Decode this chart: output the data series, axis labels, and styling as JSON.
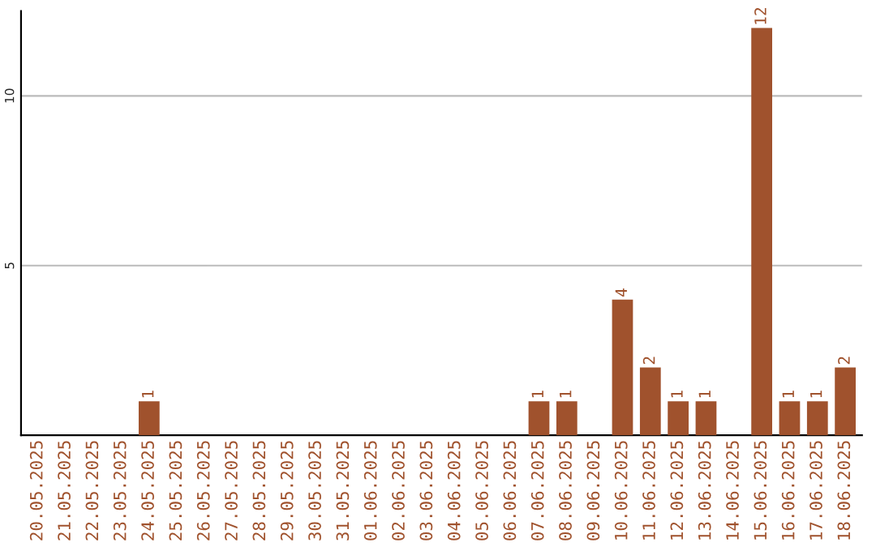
{
  "chart_data": {
    "type": "bar",
    "categories": [
      "20.05.2025",
      "21.05.2025",
      "22.05.2025",
      "23.05.2025",
      "24.05.2025",
      "25.05.2025",
      "26.05.2025",
      "27.05.2025",
      "28.05.2025",
      "29.05.2025",
      "30.05.2025",
      "31.05.2025",
      "01.06.2025",
      "02.06.2025",
      "03.06.2025",
      "04.06.2025",
      "05.06.2025",
      "06.06.2025",
      "07.06.2025",
      "08.06.2025",
      "09.06.2025",
      "10.06.2025",
      "11.06.2025",
      "12.06.2025",
      "13.06.2025",
      "14.06.2025",
      "15.06.2025",
      "16.06.2025",
      "17.06.2025",
      "18.06.2025"
    ],
    "values": [
      0,
      0,
      0,
      0,
      1,
      0,
      0,
      0,
      0,
      0,
      0,
      0,
      0,
      0,
      0,
      0,
      0,
      0,
      1,
      1,
      0,
      4,
      2,
      1,
      1,
      0,
      12,
      1,
      1,
      2
    ],
    "value_labels": [
      null,
      null,
      null,
      null,
      "1",
      null,
      null,
      null,
      null,
      null,
      null,
      null,
      null,
      null,
      null,
      null,
      null,
      null,
      "1",
      "1",
      null,
      "4",
      "2",
      "1",
      "1",
      null,
      "12",
      "1",
      "1",
      "2"
    ],
    "color": "#a0522d",
    "ylim": [
      0,
      12.5
    ],
    "yticks": [
      5,
      10
    ],
    "grid": "y"
  }
}
